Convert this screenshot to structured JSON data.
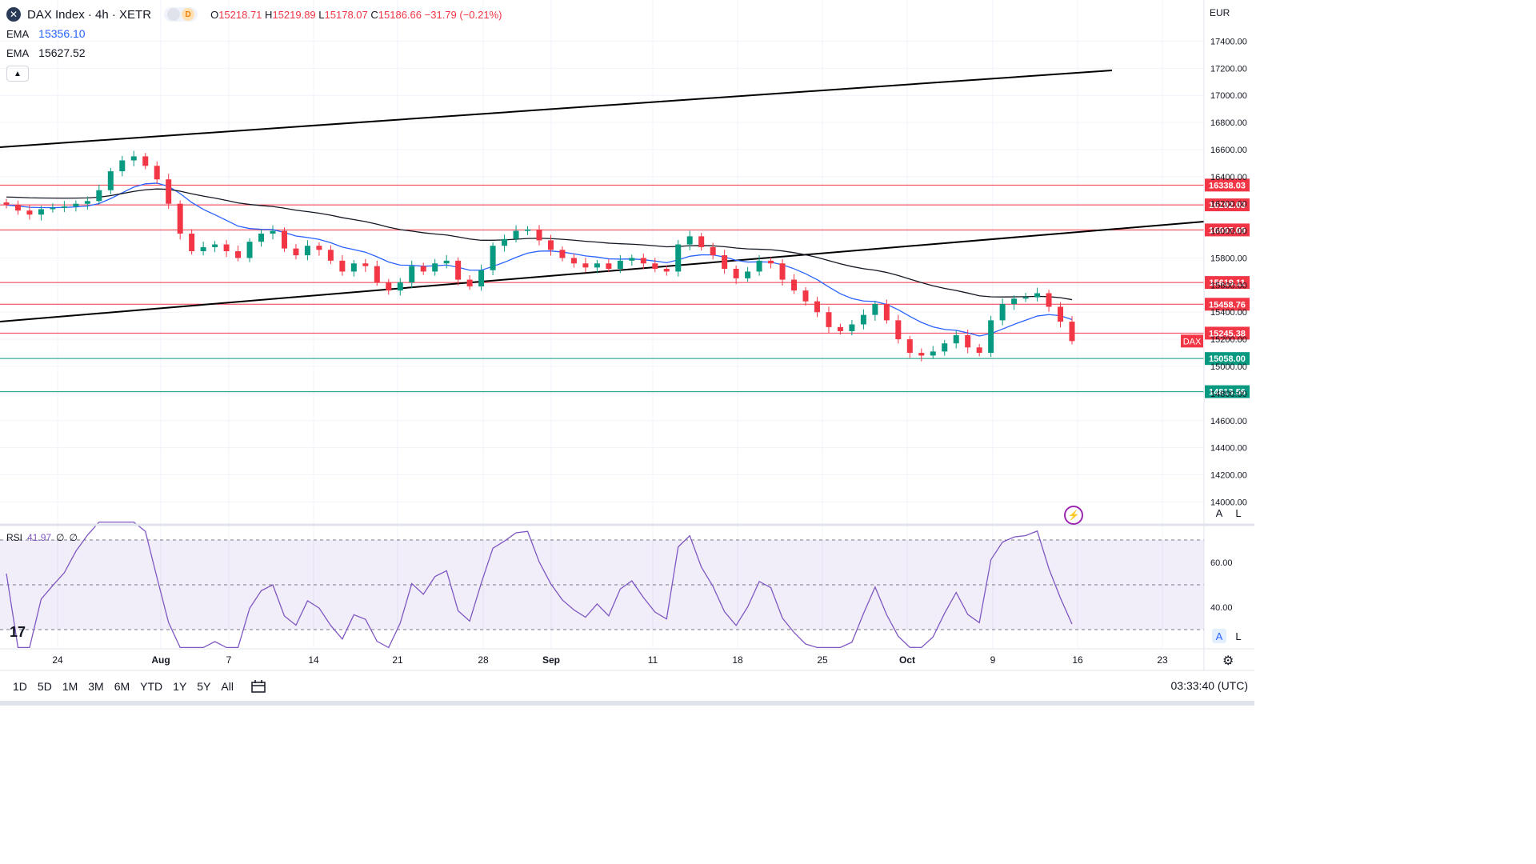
{
  "header": {
    "title": "DAX Index · 4h · XETR",
    "symbol_icon": "x-icon",
    "badge_d": "D",
    "ohlc": {
      "open_label": "O",
      "open": "15218.71",
      "high_label": "H",
      "high": "15219.89",
      "low_label": "L",
      "low": "15178.07",
      "close_label": "C",
      "close": "15186.66",
      "change": "−31.79 (−0.21%)"
    },
    "ema1_label": "EMA",
    "ema1_value": "15356.10",
    "ema2_label": "EMA",
    "ema2_value": "15627.52"
  },
  "price_axis": {
    "currency": "EUR",
    "ticks": [
      "17400.00",
      "17200.00",
      "17000.00",
      "16800.00",
      "16600.00",
      "16400.00",
      "16200.00",
      "16000.00",
      "15800.00",
      "15600.00",
      "15400.00",
      "15200.00",
      "15000.00",
      "14800.00",
      "14600.00",
      "14400.00",
      "14200.00",
      "14000.00"
    ]
  },
  "levels": [
    {
      "value": 16338.03,
      "label": "16338.03",
      "color": "#f23645"
    },
    {
      "value": 16192.03,
      "label": "16192.03",
      "color": "#f23645"
    },
    {
      "value": 16007.09,
      "label": "16007.09",
      "color": "#f23645"
    },
    {
      "value": 15619.11,
      "label": "15619.11",
      "color": "#f23645"
    },
    {
      "value": 15458.76,
      "label": "15458.76",
      "color": "#f23645"
    },
    {
      "value": 15245.38,
      "label": "15245.38",
      "color": "#f23645"
    },
    {
      "value": 15058.0,
      "label": "15058.00",
      "color": "#089981"
    },
    {
      "value": 14813.56,
      "label": "14813.56",
      "color": "#089981"
    }
  ],
  "last_price_tag": "DAX",
  "time_axis": [
    "24",
    "Aug",
    "7",
    "14",
    "21",
    "28",
    "Sep",
    "11",
    "18",
    "25",
    "Oct",
    "9",
    "16",
    "23"
  ],
  "rsi": {
    "label": "RSI",
    "value": "41.97",
    "extra1": "∅",
    "extra2": "∅",
    "ticks": [
      "60.00",
      "40.00"
    ],
    "upper": 70,
    "lower": 30
  },
  "toolbar": {
    "ranges": [
      "1D",
      "5D",
      "1M",
      "3M",
      "6M",
      "YTD",
      "1Y",
      "5Y",
      "All"
    ],
    "clock": "03:33:40 (UTC)"
  },
  "buttons": {
    "auto": "A",
    "log": "L"
  },
  "logo_text": "17",
  "colors": {
    "up": "#089981",
    "down": "#f23645",
    "ema_fast": "#2962ff",
    "ema_slow": "#131722",
    "rsi": "#7e57c2"
  },
  "chart_data": {
    "type": "candlestick",
    "title": "DAX Index · 4h · XETR",
    "ylim": [
      14100,
      17500
    ],
    "series": [
      {
        "name": "EMA",
        "value_last": 15356.1
      },
      {
        "name": "EMA",
        "value_last": 15627.52
      }
    ],
    "candles_close": [
      16190,
      16150,
      16120,
      16160,
      16170,
      16180,
      16200,
      16220,
      16300,
      16440,
      16520,
      16550,
      16480,
      16380,
      16200,
      15980,
      15850,
      15880,
      15900,
      15850,
      15800,
      15920,
      15980,
      16000,
      15870,
      15820,
      15890,
      15860,
      15780,
      15700,
      15760,
      15740,
      15620,
      15560,
      15620,
      15740,
      15700,
      15760,
      15780,
      15640,
      15590,
      15710,
      15890,
      15940,
      16000,
      16010,
      15930,
      15860,
      15800,
      15760,
      15730,
      15760,
      15720,
      15780,
      15800,
      15760,
      15720,
      15700,
      15900,
      15960,
      15880,
      15820,
      15720,
      15650,
      15700,
      15780,
      15760,
      15640,
      15560,
      15480,
      15400,
      15290,
      15260,
      15310,
      15380,
      15460,
      15340,
      15200,
      15100,
      15080,
      15110,
      15170,
      15230,
      15140,
      15100,
      15340,
      15460,
      15500,
      15510,
      15540,
      15440,
      15330,
      15187
    ]
  }
}
